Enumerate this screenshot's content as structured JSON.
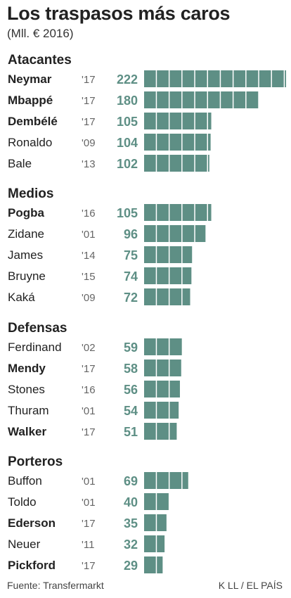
{
  "header": {
    "title": "Los traspasos más caros",
    "subtitle": "(Mll. € 2016)"
  },
  "footer": {
    "source": "Fuente: Transfermarkt",
    "credit": "K LL / EL PAÍS"
  },
  "colors": {
    "bar": "#5e8f85",
    "value_text": "#5e8f85"
  },
  "chart_data": {
    "type": "bar",
    "title": "Los traspasos más caros",
    "subtitle": "(Mll. € 2016)",
    "unit": "Mll. € 2016",
    "orientation": "horizontal",
    "bar_segment_size": 20,
    "groups": [
      {
        "name": "Atacantes",
        "items": [
          {
            "player": "Neymar",
            "year": "'17",
            "value": 222,
            "bold": true
          },
          {
            "player": "Mbappé",
            "year": "'17",
            "value": 180,
            "bold": true
          },
          {
            "player": "Dembélé",
            "year": "'17",
            "value": 105,
            "bold": true
          },
          {
            "player": "Ronaldo",
            "year": "'09",
            "value": 104,
            "bold": false
          },
          {
            "player": "Bale",
            "year": "'13",
            "value": 102,
            "bold": false
          }
        ]
      },
      {
        "name": "Medios",
        "items": [
          {
            "player": "Pogba",
            "year": "'16",
            "value": 105,
            "bold": true
          },
          {
            "player": "Zidane",
            "year": "'01",
            "value": 96,
            "bold": false
          },
          {
            "player": "James",
            "year": "'14",
            "value": 75,
            "bold": false
          },
          {
            "player": "Bruyne",
            "year": "'15",
            "value": 74,
            "bold": false
          },
          {
            "player": "Kaká",
            "year": "'09",
            "value": 72,
            "bold": false
          }
        ]
      },
      {
        "name": "Defensas",
        "items": [
          {
            "player": "Ferdinand",
            "year": "'02",
            "value": 59,
            "bold": false
          },
          {
            "player": "Mendy",
            "year": "'17",
            "value": 58,
            "bold": true
          },
          {
            "player": "Stones",
            "year": "'16",
            "value": 56,
            "bold": false
          },
          {
            "player": "Thuram",
            "year": "'01",
            "value": 54,
            "bold": false
          },
          {
            "player": "Walker",
            "year": "'17",
            "value": 51,
            "bold": true
          }
        ]
      },
      {
        "name": "Porteros",
        "items": [
          {
            "player": "Buffon",
            "year": "'01",
            "value": 69,
            "bold": false
          },
          {
            "player": "Toldo",
            "year": "'01",
            "value": 40,
            "bold": false
          },
          {
            "player": "Ederson",
            "year": "'17",
            "value": 35,
            "bold": true
          },
          {
            "player": "Neuer",
            "year": "'11",
            "value": 32,
            "bold": false
          },
          {
            "player": "Pickford",
            "year": "'17",
            "value": 29,
            "bold": true
          }
        ]
      }
    ]
  }
}
